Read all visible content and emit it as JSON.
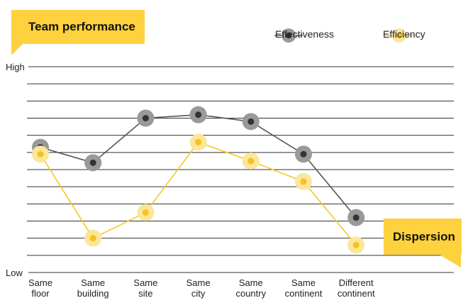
{
  "title": "Team performance",
  "annotation": "Dispersion",
  "chart_data": {
    "type": "line",
    "categories": [
      [
        "Same",
        "floor"
      ],
      [
        "Same",
        "building"
      ],
      [
        "Same",
        "site"
      ],
      [
        "Same",
        "city"
      ],
      [
        "Same",
        "country"
      ],
      [
        "Same",
        "continent"
      ],
      [
        "Different",
        "continent"
      ]
    ],
    "y_axis_labels": {
      "top": "High",
      "bottom": "Low"
    },
    "ylim": [
      0,
      12
    ],
    "grid": true,
    "legend_position": "top-right",
    "series": [
      {
        "name": "Effectiveness",
        "values": [
          7.3,
          6.4,
          9.0,
          9.2,
          8.8,
          6.9,
          3.2
        ],
        "color": "#555555",
        "marker_fill": "#999999",
        "marker_center": "#333333"
      },
      {
        "name": "Efficiency",
        "values": [
          6.9,
          2.0,
          3.5,
          7.6,
          6.5,
          5.3,
          1.6
        ],
        "color": "#f5c825",
        "marker_fill": "#fbe69a",
        "marker_center": "#f6c21c"
      }
    ]
  },
  "colors": {
    "accent": "#fdd23e",
    "grid": "#333333"
  }
}
